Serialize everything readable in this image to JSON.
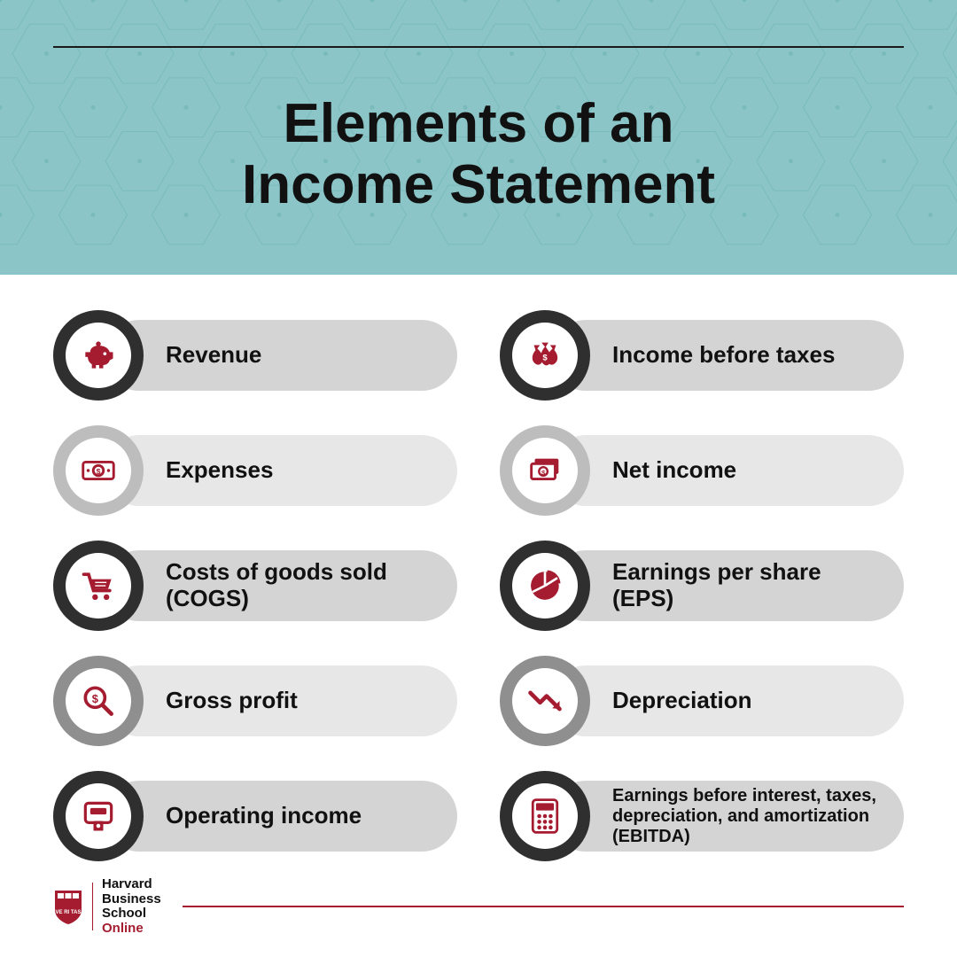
{
  "header": {
    "title": "Elements of an\nIncome Statement",
    "title_fontsize": 62,
    "background_color": "#8bc5c7",
    "pattern_color": "#5aa9ab",
    "rule_color": "#1a1a1a"
  },
  "palette": {
    "icon_accent": "#a51c30",
    "label_fontsize": 26
  },
  "rings": {
    "dark": "#2f2f2f",
    "mid": "#8f8f8f",
    "light": "#bdbdbd"
  },
  "pills": {
    "mid": "#d4d4d4",
    "light": "#e7e7e7"
  },
  "items": [
    {
      "icon": "piggy-bank",
      "ring": "dark",
      "pill": "mid",
      "label": "Revenue"
    },
    {
      "icon": "cash-bill",
      "ring": "light",
      "pill": "light",
      "label": "Expenses"
    },
    {
      "icon": "cart",
      "ring": "dark",
      "pill": "mid",
      "label": "Costs of goods sold (COGS)"
    },
    {
      "icon": "magnify-dollar",
      "ring": "mid",
      "pill": "light",
      "label": "Gross profit"
    },
    {
      "icon": "atm",
      "ring": "dark",
      "pill": "mid",
      "label": "Operating income"
    },
    {
      "icon": "money-bags",
      "ring": "dark",
      "pill": "mid",
      "label": "Income before taxes"
    },
    {
      "icon": "stacked-cash",
      "ring": "light",
      "pill": "light",
      "label": "Net income"
    },
    {
      "icon": "pie-chart",
      "ring": "dark",
      "pill": "mid",
      "label": "Earnings per share (EPS)"
    },
    {
      "icon": "trend-down",
      "ring": "mid",
      "pill": "light",
      "label": "Depreciation"
    },
    {
      "icon": "calculator",
      "ring": "dark",
      "pill": "mid",
      "label": "Earnings before interest, taxes, depreciation, and amortization (EBITDA)",
      "small": true
    }
  ],
  "footer": {
    "brand_line1": "Harvard",
    "brand_line2": "Business",
    "brand_line3": "School",
    "brand_sub": "Online",
    "accent": "#a51c30"
  }
}
